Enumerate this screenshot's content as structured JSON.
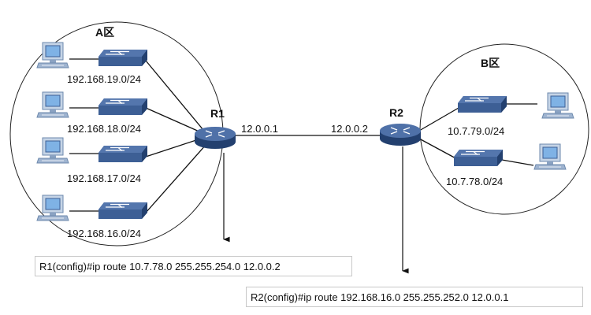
{
  "zone_a": {
    "label": "A区"
  },
  "zone_b": {
    "label": "B区"
  },
  "routers": [
    {
      "id": "R1",
      "label": "R1",
      "iface_ip": "12.0.0.1"
    },
    {
      "id": "R2",
      "label": "R2",
      "iface_ip": "12.0.0.2"
    }
  ],
  "zone_a_subnets": [
    "192.168.19.0/24",
    "192.168.18.0/24",
    "192.168.17.0/24",
    "192.168.16.0/24"
  ],
  "zone_b_subnets": [
    "10.7.79.0/24",
    "10.7.78.0/24"
  ],
  "commands": {
    "r1": "R1(config)#ip route  10.7.78.0  255.255.254.0  12.0.0.2",
    "r2": "R2(config)#ip route  192.168.16.0   255.255.252.0  12.0.0.1"
  },
  "colors": {
    "device_blue": "#3d5f95",
    "device_dark": "#28477a",
    "link": "#111111",
    "ellipse": "#222222",
    "screen": "#7fb2e5"
  }
}
